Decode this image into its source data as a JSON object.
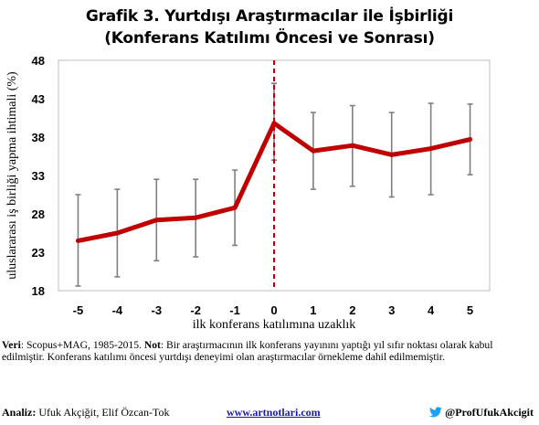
{
  "chart_data": {
    "type": "line",
    "title": "Grafik 3. Yurtdışı Araştırmacılar ile İşbirliği",
    "subtitle": "(Konferans Katılımı Öncesi ve Sonrası)",
    "xlabel": "ilk konferans katılımına uzaklık",
    "ylabel": "uluslararası iş birliği yapma ihtimali (%)",
    "x": [
      "-5",
      "-4",
      "-3",
      "-2",
      "-1",
      "0",
      "1",
      "2",
      "3",
      "4",
      "5"
    ],
    "y_ticks": [
      "18",
      "23",
      "28",
      "33",
      "38",
      "43",
      "48"
    ],
    "ylim": [
      18,
      48
    ],
    "series": [
      {
        "values": [
          24.5,
          25.5,
          27.2,
          27.5,
          28.8,
          39.8,
          36.2,
          36.9,
          35.7,
          36.5,
          37.7
        ],
        "lower": [
          18.6,
          19.8,
          21.9,
          22.4,
          23.9,
          35.0,
          31.2,
          31.6,
          30.2,
          30.5,
          33.1
        ],
        "upper": [
          30.5,
          31.2,
          32.5,
          32.5,
          33.7,
          45.0,
          41.2,
          42.1,
          41.2,
          42.4,
          42.3
        ]
      }
    ],
    "vertical_marker_x": "0",
    "line_color": "#c00000",
    "marker_color": "#c00000",
    "errorbar_color": "#7f7f7f",
    "grid": false
  },
  "notes": {
    "source_label": "Veri",
    "source_text": ": Scopus+MAG, 1985-2015.",
    "note_label": "Not",
    "note_text": ": Bir araştırmacının ilk konferans yayınını yaptığı yıl sıfır noktası olarak kabul edilmiştir. Konferans katılımı öncesi yurtdışı deneyimi olan araştırmacılar örnekleme dahil edilmemiştir."
  },
  "footer": {
    "analysis_label": "Analiz:",
    "analysis_text": " Ufuk Akçiğit, Elif Özcan-Tok",
    "website": "www.artnotlari.com",
    "twitter_handle": "@ProfUfukAkcigit",
    "twitter_icon": "twitter-bird-icon",
    "twitter_color": "#1da1f2"
  }
}
